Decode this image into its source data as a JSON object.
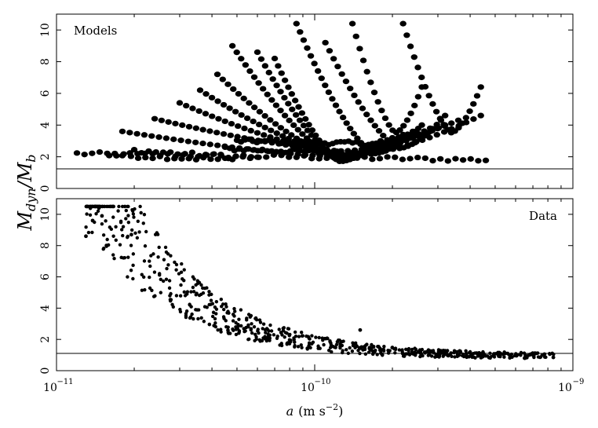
{
  "chart_data": [
    {
      "type": "scatter",
      "label": "Models",
      "x_scale": "log",
      "xlim": [
        1e-11,
        1e-09
      ],
      "ylim": [
        0,
        11
      ],
      "yticks": [
        "0",
        "2",
        "4",
        "6",
        "8",
        "10"
      ],
      "reference_line_y": 1,
      "grid": false,
      "clusters": [
        {
          "a_start": 1.2e-11,
          "a_end": 4.6e-10,
          "y_start": 2.2,
          "y_end": 1.8,
          "n": 55,
          "shape": "flat"
        },
        {
          "a_start": 1.6e-11,
          "a_end": 4.8e-11,
          "y_start": 2.1,
          "y_end": 1.8,
          "n": 18,
          "shape": "flat"
        },
        {
          "a_start": 2e-11,
          "a_end": 6e-11,
          "y_start": 2.4,
          "y_end": 1.9,
          "n": 18,
          "shape": "flat"
        },
        {
          "a_start": 1.8e-11,
          "a_end": 4.4e-10,
          "y_start": 3.6,
          "y_end": 4.6,
          "n": 50,
          "shape": "u"
        },
        {
          "a_start": 2.4e-11,
          "a_end": 3.6e-10,
          "y_start": 4.4,
          "y_end": 4.3,
          "n": 45,
          "shape": "u"
        },
        {
          "a_start": 3e-11,
          "a_end": 3.2e-10,
          "y_start": 5.4,
          "y_end": 4.0,
          "n": 42,
          "shape": "u"
        },
        {
          "a_start": 3.6e-11,
          "a_end": 2.8e-10,
          "y_start": 6.2,
          "y_end": 3.8,
          "n": 40,
          "shape": "u"
        },
        {
          "a_start": 4.2e-11,
          "a_end": 2.4e-10,
          "y_start": 7.2,
          "y_end": 3.6,
          "n": 38,
          "shape": "u"
        },
        {
          "a_start": 4.8e-11,
          "a_end": 2.2e-10,
          "y_start": 9.0,
          "y_end": 3.4,
          "n": 40,
          "shape": "u"
        },
        {
          "a_start": 6e-11,
          "a_end": 2e-10,
          "y_start": 8.6,
          "y_end": 3.2,
          "n": 36,
          "shape": "u"
        },
        {
          "a_start": 7e-11,
          "a_end": 1.8e-10,
          "y_start": 8.2,
          "y_end": 3.0,
          "n": 32,
          "shape": "u"
        },
        {
          "a_start": 8.5e-11,
          "a_end": 2.6e-10,
          "y_start": 10.4,
          "y_end": 4.0,
          "n": 36,
          "shape": "u"
        },
        {
          "a_start": 1.1e-10,
          "a_end": 3.2e-10,
          "y_start": 9.2,
          "y_end": 4.6,
          "n": 30,
          "shape": "u"
        },
        {
          "a_start": 1.4e-10,
          "a_end": 2.6e-10,
          "y_start": 10.4,
          "y_end": 6.4,
          "n": 20,
          "shape": "u"
        },
        {
          "a_start": 2.2e-10,
          "a_end": 4.4e-10,
          "y_start": 10.4,
          "y_end": 6.4,
          "n": 22,
          "shape": "u"
        },
        {
          "a_start": 5e-11,
          "a_end": 2e-10,
          "y_start": 3.0,
          "y_end": 2.8,
          "n": 40,
          "shape": "flat"
        },
        {
          "a_start": 4.5e-11,
          "a_end": 1.5e-10,
          "y_start": 2.5,
          "y_end": 2.2,
          "n": 30,
          "shape": "flat"
        }
      ]
    },
    {
      "type": "scatter",
      "label": "Data",
      "x_scale": "log",
      "xlim": [
        1e-11,
        1e-09
      ],
      "ylim": [
        0,
        11
      ],
      "yticks": [
        "0",
        "2",
        "4",
        "6",
        "8",
        "10"
      ],
      "reference_line_y": 1,
      "grid": false,
      "trend": {
        "amplitude": 1.6,
        "exponent": 1.33,
        "floor": 0.9,
        "scatter_fraction": 0.18
      },
      "n_points": 700,
      "x_range": [
        1.3e-11,
        8.5e-10
      ],
      "highlights": [
        {
          "x": 1.42e-11,
          "y": 10.5
        },
        {
          "x": 1.46e-11,
          "y": 10.4
        },
        {
          "x": 1.5e-11,
          "y": 9.9
        },
        {
          "x": 1.38e-11,
          "y": 9.6
        },
        {
          "x": 1.3e-11,
          "y": 8.6
        },
        {
          "x": 1.95e-11,
          "y": 8.7
        },
        {
          "x": 1.5e-10,
          "y": 2.6
        },
        {
          "x": 6.5e-10,
          "y": 0.8
        },
        {
          "x": 8.4e-10,
          "y": 0.85
        }
      ]
    }
  ],
  "axes": {
    "xtick_labels": [
      {
        "base": "10",
        "exp": "−11"
      },
      {
        "base": "10",
        "exp": "−10"
      },
      {
        "base": "10",
        "exp": "−9"
      }
    ],
    "xlabel_prefix": "a",
    "xlabel_units": "(m s",
    "xlabel_exp": "−2",
    "xlabel_close": ")",
    "ylabel_main": "M",
    "ylabel_sub1": "dyn",
    "ylabel_slash": "/M",
    "ylabel_sub2": "b"
  },
  "panels": {
    "top_label": "Models",
    "bottom_label": "Data"
  }
}
